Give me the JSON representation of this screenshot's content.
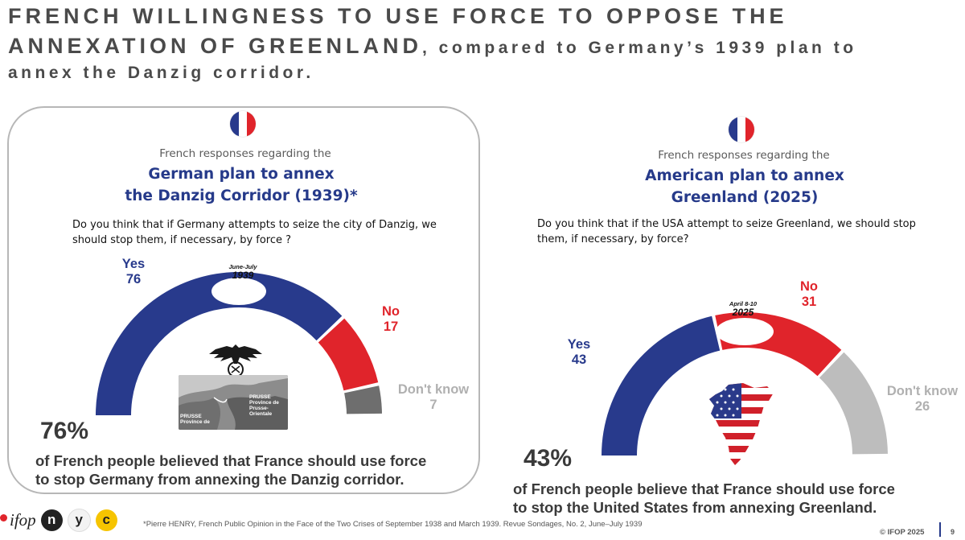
{
  "title": {
    "main": "FRENCH WILLINGNESS TO USE FORCE TO OPPOSE THE ANNEXATION OF GREENLAND",
    "sub": ", compared to Germany’s 1939 plan to",
    "sub2": "annex the Danzig corridor."
  },
  "left_panel": {
    "response_label": "French responses regarding the",
    "title_line1": "German plan to annex",
    "title_line2": "the Danzig Corridor (1939)*",
    "question_line1": "Do you think that if Germany attempts to seize the city of Danzig, we",
    "question_line2": "should stop them, if necessary, by force ?",
    "date_small": "June-July",
    "date_year": "1939",
    "big_pct": "76%",
    "caption_line1": "of French people believed that France should use force",
    "caption_line2": "to stop Germany from annexing the Danzig corridor.",
    "map_labels": [
      "PRUSSE",
      "Province de",
      "Prusse-Orientale",
      "PRUSSE",
      "Province de"
    ]
  },
  "right_panel": {
    "response_label": "French responses regarding the",
    "title_line1": "American plan to annex",
    "title_line2": "Greenland (2025)",
    "question_line1": "Do you think that if the USA attempt to seize Greenland, we should stop",
    "question_line2": "them, if necessary, by force?",
    "date_small": "April 8-10",
    "date_year": "2025",
    "big_pct": "43%",
    "caption_line1": "of French people believe that France should use force",
    "caption_line2": "to stop the United States from annexing Greenland."
  },
  "chart_data": [
    {
      "type": "pie",
      "subtype": "half-donut",
      "title": "German plan to annex the Danzig Corridor (1939)*",
      "categories": [
        "Yes",
        "No",
        "Don't know"
      ],
      "values": [
        76,
        17,
        7
      ],
      "colors": [
        "#283a8c",
        "#e0242b",
        "#6e6e6e"
      ]
    },
    {
      "type": "pie",
      "subtype": "half-donut",
      "title": "American plan to annex Greenland (2025)",
      "categories": [
        "Yes",
        "No",
        "Don't know"
      ],
      "values": [
        43,
        31,
        26
      ],
      "colors": [
        "#283a8c",
        "#e0242b",
        "#bdbdbd"
      ]
    }
  ],
  "colors": {
    "blue": "#283a8c",
    "red": "#e0242b",
    "grey": "#bdbdbd",
    "dark_grey": "#6e6e6e",
    "title_blue": "#263a8a"
  },
  "icons": [
    "french-flag-icon",
    "eagle-emblem-icon",
    "greenland-us-flag-map-icon"
  ],
  "footer": {
    "logo_ifop": "ifop",
    "logo_n": "n",
    "logo_y": "y",
    "logo_c": "c",
    "footnote": "*Pierre HENRY, French Public Opinion in the Face of the Two Crises of September 1938 and March 1939. Revue Sondages, No. 2, June–July 1939",
    "copyright": "© IFOP 2025",
    "page": "9"
  }
}
